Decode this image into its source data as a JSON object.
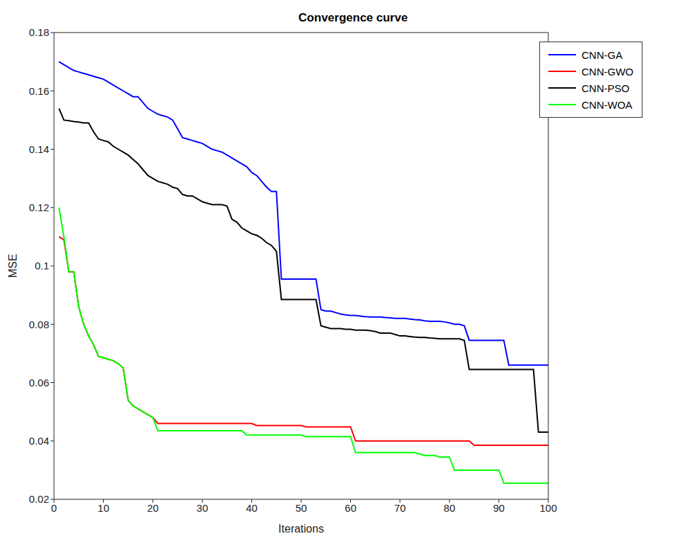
{
  "chart_data": {
    "type": "line",
    "title": "Convergence curve",
    "x_label": "Iterations",
    "y_label": "MSE",
    "x": [
      1,
      2,
      3,
      4,
      5,
      6,
      7,
      8,
      9,
      10,
      11,
      12,
      13,
      14,
      15,
      16,
      17,
      18,
      19,
      20,
      21,
      22,
      23,
      24,
      25,
      26,
      27,
      28,
      29,
      30,
      31,
      32,
      33,
      34,
      35,
      36,
      37,
      38,
      39,
      40,
      41,
      42,
      43,
      44,
      45,
      46,
      47,
      48,
      49,
      50,
      51,
      52,
      53,
      54,
      55,
      56,
      57,
      58,
      59,
      60,
      61,
      62,
      63,
      64,
      65,
      66,
      67,
      68,
      69,
      70,
      71,
      72,
      73,
      74,
      75,
      76,
      77,
      78,
      79,
      80,
      81,
      82,
      83,
      84,
      85,
      86,
      87,
      88,
      89,
      90,
      91,
      92,
      93,
      94,
      95,
      96,
      97,
      98,
      99,
      100
    ],
    "series": [
      {
        "name": "CNN-GA",
        "color": "#0000ff",
        "marker": "none",
        "line_style": "solid",
        "values": [
          0.17,
          0.169,
          0.168,
          0.167,
          0.1665,
          0.166,
          0.1655,
          0.165,
          0.1645,
          0.164,
          0.163,
          0.162,
          0.161,
          0.16,
          0.159,
          0.158,
          0.158,
          0.156,
          0.154,
          0.153,
          0.152,
          0.1515,
          0.151,
          0.15,
          0.147,
          0.144,
          0.1435,
          0.143,
          0.1425,
          0.142,
          0.141,
          0.14,
          0.1395,
          0.139,
          0.138,
          0.137,
          0.136,
          0.135,
          0.134,
          0.132,
          0.131,
          0.129,
          0.127,
          0.1255,
          0.1255,
          0.0955,
          0.0955,
          0.0955,
          0.0955,
          0.0955,
          0.0955,
          0.0955,
          0.0955,
          0.085,
          0.0845,
          0.0845,
          0.084,
          0.0835,
          0.0832,
          0.083,
          0.083,
          0.0828,
          0.0826,
          0.0825,
          0.0825,
          0.0825,
          0.0823,
          0.0822,
          0.082,
          0.082,
          0.082,
          0.0818,
          0.0816,
          0.0815,
          0.0812,
          0.081,
          0.081,
          0.081,
          0.0808,
          0.0805,
          0.08,
          0.08,
          0.0795,
          0.0745,
          0.0745,
          0.0745,
          0.0745,
          0.0745,
          0.0745,
          0.0745,
          0.0745,
          0.066,
          0.066,
          0.066,
          0.066,
          0.066,
          0.066,
          0.066,
          0.066,
          0.066
        ]
      },
      {
        "name": "CNN-PSO",
        "color": "#000000",
        "marker": "none",
        "line_style": "solid",
        "values": [
          0.154,
          0.15,
          0.1498,
          0.1495,
          0.1493,
          0.149,
          0.149,
          0.146,
          0.1435,
          0.143,
          0.1425,
          0.141,
          0.14,
          0.139,
          0.138,
          0.1365,
          0.135,
          0.133,
          0.131,
          0.13,
          0.129,
          0.1285,
          0.128,
          0.127,
          0.1265,
          0.1245,
          0.124,
          0.124,
          0.123,
          0.122,
          0.1215,
          0.121,
          0.121,
          0.121,
          0.1205,
          0.116,
          0.115,
          0.113,
          0.112,
          0.111,
          0.1105,
          0.1095,
          0.108,
          0.107,
          0.105,
          0.0885,
          0.0885,
          0.0885,
          0.0885,
          0.0885,
          0.0885,
          0.0885,
          0.0885,
          0.0795,
          0.079,
          0.0785,
          0.0785,
          0.0785,
          0.0783,
          0.0783,
          0.078,
          0.078,
          0.078,
          0.0778,
          0.0775,
          0.077,
          0.077,
          0.077,
          0.0765,
          0.076,
          0.076,
          0.0758,
          0.0756,
          0.0755,
          0.0755,
          0.0753,
          0.0752,
          0.075,
          0.075,
          0.075,
          0.075,
          0.075,
          0.0745,
          0.0645,
          0.0645,
          0.0645,
          0.0645,
          0.0645,
          0.0645,
          0.0645,
          0.0645,
          0.0645,
          0.0645,
          0.0645,
          0.0645,
          0.0645,
          0.0645,
          0.043,
          0.043,
          0.043
        ]
      },
      {
        "name": "CNN-GWO",
        "color": "#ff0000",
        "marker": "none",
        "line_style": "solid",
        "values": [
          0.11,
          0.109,
          0.098,
          0.098,
          0.086,
          0.08,
          0.076,
          0.073,
          0.069,
          0.0685,
          0.068,
          0.0675,
          0.0665,
          0.065,
          0.054,
          0.052,
          0.051,
          0.05,
          0.049,
          0.048,
          0.046,
          0.046,
          0.046,
          0.046,
          0.046,
          0.046,
          0.046,
          0.046,
          0.046,
          0.046,
          0.046,
          0.046,
          0.046,
          0.046,
          0.046,
          0.046,
          0.046,
          0.046,
          0.046,
          0.046,
          0.0453,
          0.0453,
          0.0453,
          0.0453,
          0.0453,
          0.0453,
          0.0453,
          0.0453,
          0.0453,
          0.0453,
          0.0448,
          0.0448,
          0.0448,
          0.0448,
          0.0448,
          0.0448,
          0.0448,
          0.0448,
          0.0448,
          0.0448,
          0.04,
          0.04,
          0.04,
          0.04,
          0.04,
          0.04,
          0.04,
          0.04,
          0.04,
          0.04,
          0.04,
          0.04,
          0.04,
          0.04,
          0.04,
          0.04,
          0.04,
          0.04,
          0.04,
          0.04,
          0.04,
          0.04,
          0.04,
          0.04,
          0.0385,
          0.0385,
          0.0385,
          0.0385,
          0.0385,
          0.0385,
          0.0385,
          0.0385,
          0.0385,
          0.0385,
          0.0385,
          0.0385,
          0.0385,
          0.0385,
          0.0385,
          0.0385
        ]
      },
      {
        "name": "CNN-WOA",
        "color": "#00ff00",
        "marker": "none",
        "line_style": "solid",
        "values": [
          0.12,
          0.11,
          0.098,
          0.098,
          0.086,
          0.08,
          0.076,
          0.073,
          0.069,
          0.0685,
          0.068,
          0.0675,
          0.0665,
          0.065,
          0.054,
          0.052,
          0.051,
          0.05,
          0.049,
          0.048,
          0.0435,
          0.0435,
          0.0435,
          0.0435,
          0.0435,
          0.0435,
          0.0435,
          0.0435,
          0.0435,
          0.0435,
          0.0435,
          0.0435,
          0.0435,
          0.0435,
          0.0435,
          0.0435,
          0.0435,
          0.0435,
          0.042,
          0.042,
          0.042,
          0.042,
          0.042,
          0.042,
          0.042,
          0.042,
          0.042,
          0.042,
          0.042,
          0.042,
          0.0415,
          0.0415,
          0.0415,
          0.0415,
          0.0415,
          0.0415,
          0.0415,
          0.0415,
          0.0415,
          0.0415,
          0.036,
          0.036,
          0.036,
          0.036,
          0.036,
          0.036,
          0.036,
          0.036,
          0.036,
          0.036,
          0.036,
          0.036,
          0.036,
          0.0355,
          0.035,
          0.035,
          0.035,
          0.0345,
          0.0345,
          0.0345,
          0.03,
          0.03,
          0.03,
          0.03,
          0.03,
          0.03,
          0.03,
          0.03,
          0.03,
          0.03,
          0.0255,
          0.0255,
          0.0255,
          0.0255,
          0.0255,
          0.0255,
          0.0255,
          0.0255,
          0.0255,
          0.0255
        ]
      }
    ],
    "xlim": [
      0,
      100
    ],
    "xticks": [
      0,
      10,
      20,
      30,
      40,
      50,
      60,
      70,
      80,
      90,
      100
    ],
    "ylim": [
      0.02,
      0.18
    ],
    "yticks": [
      0.02,
      0.04,
      0.06,
      0.08,
      0.1,
      0.12,
      0.14,
      0.16,
      0.18
    ],
    "grid": false,
    "legend": "upper right"
  }
}
